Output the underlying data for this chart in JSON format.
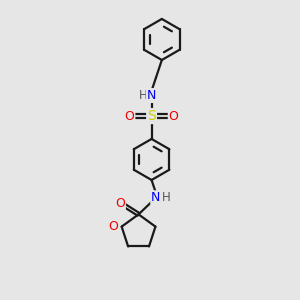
{
  "background_color": "#e6e6e6",
  "line_color": "#1a1a1a",
  "bond_lw": 1.6,
  "atom_colors": {
    "N": "#0000ee",
    "O": "#ee0000",
    "S": "#cccc00",
    "H": "#555555"
  },
  "figsize": [
    3.0,
    3.0
  ],
  "dpi": 100,
  "xlim": [
    -2.2,
    2.2
  ],
  "ylim": [
    -3.8,
    3.8
  ]
}
